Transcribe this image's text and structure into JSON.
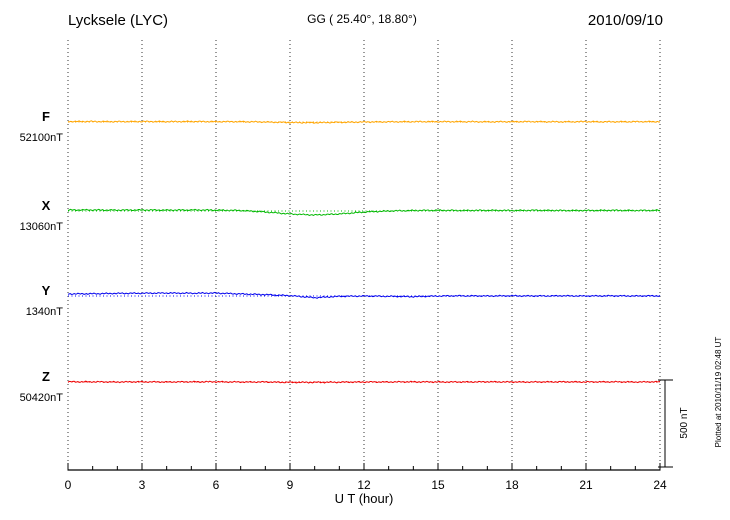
{
  "header": {
    "station": "Lycksele (LYC)",
    "coords": "GG ( 25.40°,  18.80°)",
    "date": "2010/09/10"
  },
  "footer": {
    "note": "Plotted at 2010/11/19 02:48 UT"
  },
  "colors": {
    "F": "#FFA500",
    "X": "#00B800",
    "Y": "#0000EE",
    "Z": "#EE0000",
    "grid": "#333333",
    "axis": "#000000"
  },
  "chart_data": {
    "type": "line",
    "title": "Lycksele (LYC)",
    "xlabel": "U T (hour)",
    "x_range": [
      0,
      24
    ],
    "x_ticks": [
      0,
      3,
      6,
      9,
      12,
      15,
      18,
      21,
      24
    ],
    "x_hours": [
      0,
      1,
      2,
      3,
      4,
      5,
      6,
      7,
      8,
      9,
      10,
      11,
      12,
      13,
      14,
      15,
      16,
      17,
      18,
      19,
      20,
      21,
      22,
      23,
      24
    ],
    "grid": "dotted-vertical",
    "legend_position": "left",
    "scale_bar": {
      "label": "500 nT",
      "span_nT": 500
    },
    "series": [
      {
        "name": "F",
        "ref_label": "52100nT",
        "ref_nT": 52100,
        "color": "#FFA500",
        "units": "nT deviation from reference",
        "values": [
          3,
          3,
          2,
          3,
          2,
          3,
          2,
          2,
          0,
          -3,
          -4,
          -2,
          0,
          1,
          2,
          2,
          2,
          1,
          2,
          2,
          1,
          2,
          1,
          2,
          2
        ]
      },
      {
        "name": "X",
        "ref_label": "13060nT",
        "ref_nT": 13060,
        "color": "#00B800",
        "units": "nT deviation from reference",
        "values": [
          6,
          6,
          5,
          6,
          5,
          6,
          5,
          3,
          -6,
          -17,
          -23,
          -17,
          -6,
          0,
          3,
          4,
          3,
          4,
          3,
          4,
          3,
          3,
          4,
          3,
          4
        ]
      },
      {
        "name": "Y",
        "ref_label": "1340nT",
        "ref_nT": 1340,
        "color": "#0000EE",
        "units": "nT deviation from reference",
        "values": [
          12,
          13,
          15,
          16,
          17,
          16,
          17,
          12,
          8,
          2,
          -10,
          -2,
          0,
          -2,
          -4,
          0,
          1,
          0,
          1,
          0,
          1,
          0,
          1,
          0,
          1
        ]
      },
      {
        "name": "Z",
        "ref_label": "50420nT",
        "ref_nT": 50420,
        "color": "#EE0000",
        "units": "nT deviation from reference",
        "values": [
          1,
          1,
          0,
          1,
          0,
          1,
          1,
          0,
          0,
          -2,
          -2,
          -1,
          0,
          0,
          1,
          0,
          0,
          1,
          0,
          0,
          1,
          0,
          1,
          0,
          1
        ]
      }
    ]
  }
}
